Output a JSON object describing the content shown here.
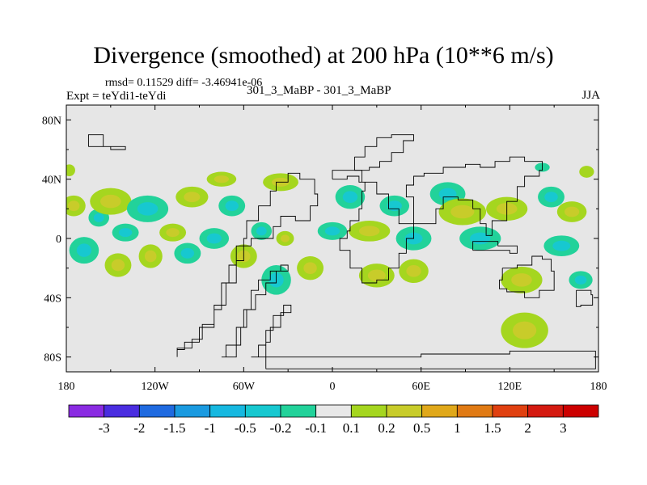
{
  "chart_data": {
    "type": "heatmap",
    "title": "Divergence (smoothed) at 200 hPa (10**6 m/s)",
    "stats": "rmsd= 0.11529 diff= -3.46941e-06",
    "experiment": "Expt = teYdi1-teYdi",
    "experiments_compared": "301_3_MaBP - 301_3_MaBP",
    "season": "JJA",
    "x_range": [
      -180,
      180
    ],
    "y_range": [
      -90,
      90
    ],
    "x_ticks": [
      {
        "value": -180,
        "label": "180"
      },
      {
        "value": -120,
        "label": "120W"
      },
      {
        "value": -60,
        "label": "60W"
      },
      {
        "value": 0,
        "label": "0"
      },
      {
        "value": 60,
        "label": "60E"
      },
      {
        "value": 120,
        "label": "120E"
      },
      {
        "value": 180,
        "label": "180"
      }
    ],
    "y_ticks": [
      {
        "value": 80,
        "label": "80N"
      },
      {
        "value": 40,
        "label": "40N"
      },
      {
        "value": 0,
        "label": "0"
      },
      {
        "value": -40,
        "label": "40S"
      },
      {
        "value": -80,
        "label": "80S"
      }
    ],
    "contour_levels": [
      "-3",
      "-2",
      "-1.5",
      "-1",
      "-0.5",
      "-0.2",
      "-0.1",
      "0.1",
      "0.2",
      "0.5",
      "1",
      "1.5",
      "2",
      "3"
    ],
    "colorbar_colors": [
      "#8a2be2",
      "#4a2de0",
      "#1f6ae0",
      "#1a9ae0",
      "#16b8e0",
      "#17c8d0",
      "#22d29a",
      "#e8e8e8",
      "#a5d61f",
      "#c8cc2a",
      "#e0a81a",
      "#e07a14",
      "#e04010",
      "#d41a10",
      "#cc0000"
    ],
    "blobs": [
      {
        "lon": -175,
        "lat": 22,
        "rlon": 8,
        "rlat": 7,
        "color": "#a5d61f",
        "inner": "#c8cc2a"
      },
      {
        "lon": -168,
        "lat": -8,
        "rlon": 10,
        "rlat": 9,
        "color": "#22d29a",
        "inner": "#17c8d0"
      },
      {
        "lon": -158,
        "lat": 14,
        "rlon": 7,
        "rlat": 6,
        "color": "#22d29a",
        "inner": "#17c8d0"
      },
      {
        "lon": -150,
        "lat": 25,
        "rlon": 14,
        "rlat": 9,
        "color": "#a5d61f",
        "inner": "#c8cc2a"
      },
      {
        "lon": -145,
        "lat": -18,
        "rlon": 9,
        "rlat": 8,
        "color": "#a5d61f",
        "inner": "#c8cc2a"
      },
      {
        "lon": -140,
        "lat": 4,
        "rlon": 9,
        "rlat": 6,
        "color": "#22d29a",
        "inner": "#17c8d0"
      },
      {
        "lon": -125,
        "lat": 20,
        "rlon": 14,
        "rlat": 9,
        "color": "#22d29a",
        "inner": "#17c8d0"
      },
      {
        "lon": -123,
        "lat": -12,
        "rlon": 8,
        "rlat": 8,
        "color": "#a5d61f",
        "inner": "#c8cc2a"
      },
      {
        "lon": -108,
        "lat": 4,
        "rlon": 9,
        "rlat": 6,
        "color": "#a5d61f",
        "inner": "#c8cc2a"
      },
      {
        "lon": -95,
        "lat": 28,
        "rlon": 11,
        "rlat": 7,
        "color": "#a5d61f",
        "inner": "#c8cc2a"
      },
      {
        "lon": -98,
        "lat": -10,
        "rlon": 9,
        "rlat": 7,
        "color": "#22d29a",
        "inner": "#17c8d0"
      },
      {
        "lon": -80,
        "lat": 0,
        "rlon": 10,
        "rlat": 7,
        "color": "#22d29a",
        "inner": "#17c8d0"
      },
      {
        "lon": -75,
        "lat": 40,
        "rlon": 10,
        "rlat": 5,
        "color": "#a5d61f",
        "inner": "#c8cc2a"
      },
      {
        "lon": -68,
        "lat": 22,
        "rlon": 9,
        "rlat": 7,
        "color": "#22d29a",
        "inner": "#17c8d0"
      },
      {
        "lon": -60,
        "lat": -12,
        "rlon": 9,
        "rlat": 8,
        "color": "#a5d61f",
        "inner": "#c8cc2a"
      },
      {
        "lon": -48,
        "lat": 5,
        "rlon": 7,
        "rlat": 6,
        "color": "#22d29a",
        "inner": "#17c8d0"
      },
      {
        "lon": -35,
        "lat": 38,
        "rlon": 12,
        "rlat": 6,
        "color": "#a5d61f",
        "inner": "#c8cc2a"
      },
      {
        "lon": -32,
        "lat": 0,
        "rlon": 6,
        "rlat": 5,
        "color": "#a5d61f",
        "inner": "#c8cc2a"
      },
      {
        "lon": -38,
        "lat": -28,
        "rlon": 10,
        "rlat": 10,
        "color": "#22d29a",
        "inner": "#17c8d0"
      },
      {
        "lon": -15,
        "lat": -20,
        "rlon": 9,
        "rlat": 8,
        "color": "#a5d61f",
        "inner": "#c8cc2a"
      },
      {
        "lon": 0,
        "lat": 5,
        "rlon": 10,
        "rlat": 6,
        "color": "#22d29a",
        "inner": "#17c8d0"
      },
      {
        "lon": 12,
        "lat": 28,
        "rlon": 10,
        "rlat": 8,
        "color": "#22d29a",
        "inner": "#17c8d0"
      },
      {
        "lon": 25,
        "lat": 5,
        "rlon": 14,
        "rlat": 7,
        "color": "#a5d61f",
        "inner": "#c8cc2a"
      },
      {
        "lon": 30,
        "lat": -25,
        "rlon": 12,
        "rlat": 8,
        "color": "#a5d61f",
        "inner": "#c8cc2a"
      },
      {
        "lon": 42,
        "lat": 22,
        "rlon": 10,
        "rlat": 7,
        "color": "#22d29a",
        "inner": "#17c8d0"
      },
      {
        "lon": 55,
        "lat": 0,
        "rlon": 12,
        "rlat": 8,
        "color": "#22d29a",
        "inner": "#17c8d0"
      },
      {
        "lon": 55,
        "lat": -22,
        "rlon": 10,
        "rlat": 8,
        "color": "#a5d61f",
        "inner": "#c8cc2a"
      },
      {
        "lon": 78,
        "lat": 30,
        "rlon": 12,
        "rlat": 8,
        "color": "#22d29a",
        "inner": "#17c8d0"
      },
      {
        "lon": 88,
        "lat": 18,
        "rlon": 16,
        "rlat": 9,
        "color": "#a5d61f",
        "inner": "#c8cc2a"
      },
      {
        "lon": 100,
        "lat": 0,
        "rlon": 14,
        "rlat": 8,
        "color": "#22d29a",
        "inner": "#17c8d0"
      },
      {
        "lon": 118,
        "lat": 20,
        "rlon": 14,
        "rlat": 8,
        "color": "#a5d61f",
        "inner": "#c8cc2a"
      },
      {
        "lon": 128,
        "lat": -28,
        "rlon": 14,
        "rlat": 9,
        "color": "#a5d61f",
        "inner": "#c8cc2a"
      },
      {
        "lon": 130,
        "lat": -62,
        "rlon": 16,
        "rlat": 12,
        "color": "#a5d61f",
        "inner": "#c8cc2a"
      },
      {
        "lon": 148,
        "lat": 28,
        "rlon": 9,
        "rlat": 7,
        "color": "#22d29a",
        "inner": "#17c8d0"
      },
      {
        "lon": 155,
        "lat": -5,
        "rlon": 12,
        "rlat": 7,
        "color": "#22d29a",
        "inner": "#17c8d0"
      },
      {
        "lon": 162,
        "lat": 18,
        "rlon": 10,
        "rlat": 7,
        "color": "#a5d61f",
        "inner": "#c8cc2a"
      },
      {
        "lon": 168,
        "lat": -28,
        "rlon": 8,
        "rlat": 6,
        "color": "#22d29a",
        "inner": "#17c8d0"
      },
      {
        "lon": 172,
        "lat": 45,
        "rlon": 5,
        "rlat": 4,
        "color": "#a5d61f",
        "inner": "#a5d61f"
      },
      {
        "lon": -178,
        "lat": 46,
        "rlon": 4,
        "rlat": 4,
        "color": "#a5d61f",
        "inner": "#a5d61f"
      },
      {
        "lon": 142,
        "lat": 48,
        "rlon": 5,
        "rlat": 3,
        "color": "#22d29a",
        "inner": "#22d29a"
      }
    ],
    "land_outlines": [
      [
        [
          -105,
          -80
        ],
        [
          -105,
          -74
        ],
        [
          -95,
          -68
        ],
        [
          -88,
          -58
        ],
        [
          -80,
          -48
        ],
        [
          -75,
          -30
        ],
        [
          -70,
          -18
        ],
        [
          -65,
          -5
        ],
        [
          -55,
          0
        ],
        [
          -40,
          8
        ],
        [
          -35,
          15
        ],
        [
          -25,
          12
        ],
        [
          -15,
          22
        ],
        [
          -10,
          30
        ],
        [
          -12,
          40
        ],
        [
          -22,
          44
        ],
        [
          -30,
          38
        ],
        [
          -38,
          32
        ],
        [
          -42,
          22
        ],
        [
          -50,
          12
        ],
        [
          -58,
          0
        ],
        [
          -60,
          -15
        ],
        [
          -65,
          -30
        ],
        [
          -72,
          -45
        ],
        [
          -80,
          -60
        ],
        [
          -90,
          -70
        ],
        [
          -100,
          -75
        ],
        [
          -105,
          -80
        ]
      ],
      [
        [
          -75,
          -80
        ],
        [
          -72,
          -72
        ],
        [
          -65,
          -60
        ],
        [
          -60,
          -48
        ],
        [
          -55,
          -35
        ],
        [
          -50,
          -28
        ],
        [
          -42,
          -22
        ],
        [
          -35,
          -18
        ],
        [
          -30,
          -22
        ],
        [
          -38,
          -30
        ],
        [
          -45,
          -38
        ],
        [
          -52,
          -48
        ],
        [
          -58,
          -60
        ],
        [
          -62,
          -72
        ],
        [
          -65,
          -80
        ],
        [
          -75,
          -80
        ]
      ],
      [
        [
          -55,
          -80
        ],
        [
          -50,
          -72
        ],
        [
          -45,
          -62
        ],
        [
          -40,
          -52
        ],
        [
          -33,
          -45
        ],
        [
          -28,
          -50
        ],
        [
          -35,
          -60
        ],
        [
          -42,
          -70
        ],
        [
          -45,
          -80
        ],
        [
          -55,
          -80
        ]
      ],
      [
        [
          -45,
          -88
        ],
        [
          -45,
          -80
        ],
        [
          30,
          -80
        ],
        [
          60,
          -78
        ],
        [
          120,
          -76
        ],
        [
          178,
          -78
        ],
        [
          178,
          -88
        ],
        [
          -45,
          -88
        ]
      ],
      [
        [
          0,
          40
        ],
        [
          10,
          42
        ],
        [
          18,
          38
        ],
        [
          22,
          32
        ],
        [
          20,
          20
        ],
        [
          18,
          12
        ],
        [
          12,
          5
        ],
        [
          10,
          0
        ],
        [
          5,
          -8
        ],
        [
          12,
          -20
        ],
        [
          20,
          -30
        ],
        [
          30,
          -28
        ],
        [
          38,
          -20
        ],
        [
          45,
          -10
        ],
        [
          50,
          0
        ],
        [
          55,
          10
        ],
        [
          45,
          20
        ],
        [
          38,
          30
        ],
        [
          30,
          38
        ],
        [
          20,
          46
        ],
        [
          10,
          46
        ],
        [
          0,
          40
        ]
      ],
      [
        [
          15,
          55
        ],
        [
          22,
          62
        ],
        [
          30,
          68
        ],
        [
          40,
          70
        ],
        [
          55,
          66
        ],
        [
          48,
          58
        ],
        [
          40,
          52
        ],
        [
          32,
          48
        ],
        [
          25,
          46
        ],
        [
          15,
          55
        ]
      ],
      [
        [
          55,
          10
        ],
        [
          70,
          20
        ],
        [
          75,
          28
        ],
        [
          85,
          26
        ],
        [
          95,
          20
        ],
        [
          100,
          10
        ],
        [
          104,
          2
        ],
        [
          108,
          12
        ],
        [
          118,
          25
        ],
        [
          125,
          35
        ],
        [
          130,
          42
        ],
        [
          140,
          46
        ],
        [
          142,
          52
        ],
        [
          130,
          55
        ],
        [
          120,
          52
        ],
        [
          110,
          48
        ],
        [
          100,
          50
        ],
        [
          90,
          48
        ],
        [
          75,
          44
        ],
        [
          62,
          42
        ],
        [
          55,
          36
        ],
        [
          50,
          28
        ],
        [
          55,
          10
        ]
      ],
      [
        [
          95,
          -8
        ],
        [
          110,
          -8
        ],
        [
          120,
          -10
        ],
        [
          125,
          -5
        ],
        [
          112,
          -2
        ],
        [
          100,
          -2
        ],
        [
          95,
          -8
        ]
      ],
      [
        [
          115,
          -20
        ],
        [
          125,
          -18
        ],
        [
          135,
          -12
        ],
        [
          142,
          -14
        ],
        [
          148,
          -22
        ],
        [
          150,
          -35
        ],
        [
          140,
          -40
        ],
        [
          130,
          -36
        ],
        [
          118,
          -34
        ],
        [
          113,
          -28
        ],
        [
          115,
          -20
        ]
      ],
      [
        [
          165,
          -35
        ],
        [
          175,
          -38
        ],
        [
          176,
          -45
        ],
        [
          168,
          -46
        ],
        [
          165,
          -35
        ]
      ],
      [
        [
          -165,
          62
        ],
        [
          -150,
          60
        ],
        [
          -140,
          62
        ],
        [
          -155,
          70
        ],
        [
          -165,
          62
        ]
      ]
    ]
  }
}
